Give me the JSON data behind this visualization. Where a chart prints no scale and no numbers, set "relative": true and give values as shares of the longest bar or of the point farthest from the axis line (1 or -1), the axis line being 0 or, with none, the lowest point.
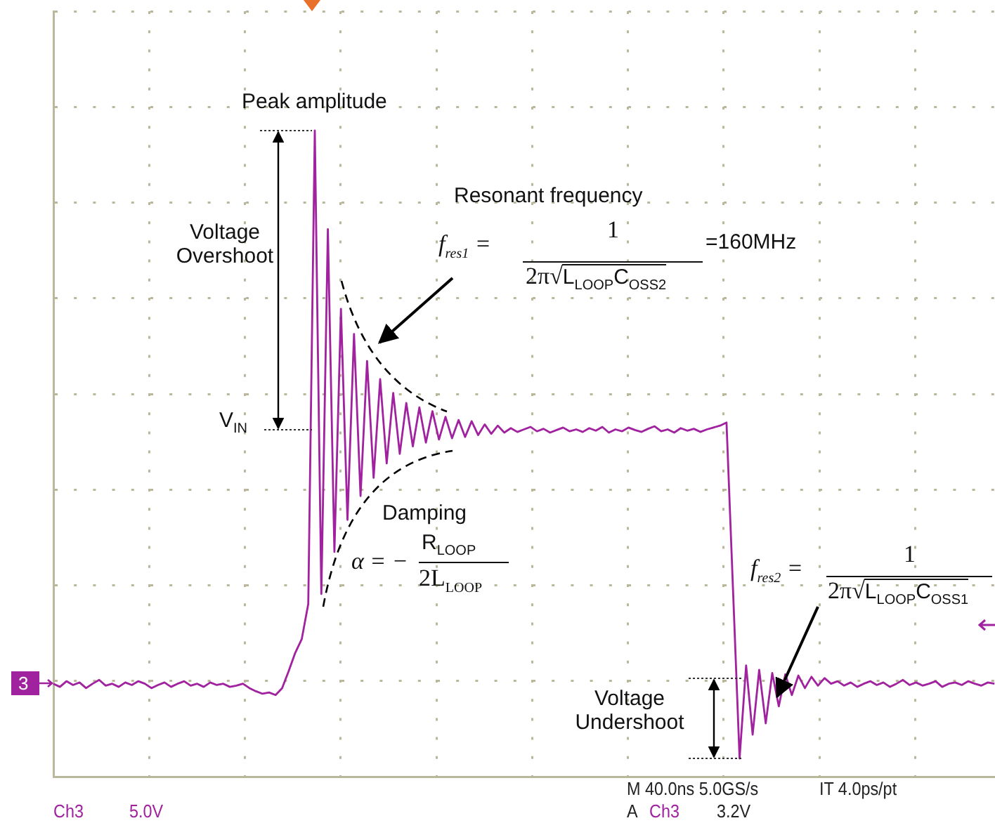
{
  "chart_data": {
    "type": "line",
    "relative": true,
    "grid": true,
    "legend": false,
    "tick_labels": false,
    "marker": "none",
    "line_style": "solid",
    "categories": [
      null,
      null,
      null,
      null,
      null,
      null,
      null,
      null,
      null,
      null,
      null,
      null,
      null,
      null,
      null,
      null,
      null,
      null,
      null,
      null,
      null,
      null,
      null,
      null,
      null,
      null,
      null,
      null,
      null,
      null,
      null,
      null,
      null,
      null,
      null,
      null,
      null,
      null,
      null,
      null,
      null,
      null,
      null,
      null,
      null,
      null,
      null,
      null,
      null,
      null,
      null,
      null,
      null,
      null,
      null,
      null,
      null,
      null,
      null,
      null,
      null,
      null,
      null,
      null,
      null,
      null,
      null,
      null,
      null,
      null,
      null,
      null,
      null,
      null,
      null,
      null,
      null,
      null,
      null,
      null,
      null,
      null,
      null,
      null,
      null,
      null,
      null,
      null,
      null,
      null,
      null,
      null,
      null,
      null,
      null,
      null,
      null,
      null,
      null,
      null,
      null,
      null,
      null,
      null,
      null,
      null,
      null,
      null,
      null,
      null,
      null,
      null,
      null,
      null,
      null,
      null,
      null,
      null,
      null,
      null,
      null,
      null,
      null,
      null,
      null,
      null,
      null,
      null,
      null,
      null,
      null,
      null,
      null,
      null,
      null,
      null,
      null,
      null,
      null,
      null,
      null,
      null,
      null,
      null,
      null
    ],
    "series": [
      {
        "color": "#a0229f",
        "values": [
          0.119,
          0.114,
          0.123,
          0.117,
          0.121,
          0.112,
          0.119,
          0.125,
          0.116,
          0.119,
          0.114,
          0.121,
          0.117,
          0.123,
          0.119,
          0.112,
          0.117,
          0.121,
          0.114,
          0.119,
          0.123,
          0.116,
          0.119,
          0.114,
          0.121,
          0.117,
          0.119,
          0.114,
          0.116,
          0.119,
          0.112,
          0.107,
          0.103,
          0.105,
          0.101,
          0.112,
          0.139,
          0.168,
          0.19,
          0.246,
          1.0,
          0.262,
          0.843,
          0.329,
          0.716,
          0.38,
          0.676,
          0.418,
          0.633,
          0.447,
          0.604,
          0.47,
          0.582,
          0.485,
          0.566,
          0.497,
          0.559,
          0.503,
          0.553,
          0.508,
          0.544,
          0.51,
          0.539,
          0.512,
          0.537,
          0.515,
          0.532,
          0.517,
          0.53,
          0.519,
          0.526,
          0.52,
          0.524,
          0.528,
          0.521,
          0.525,
          0.519,
          0.523,
          0.527,
          0.521,
          0.524,
          0.52,
          0.526,
          0.522,
          0.528,
          0.519,
          0.524,
          0.521,
          0.527,
          0.523,
          0.52,
          0.525,
          0.529,
          0.521,
          0.524,
          0.519,
          0.526,
          0.522,
          0.525,
          0.52,
          0.524,
          0.527,
          0.53,
          0.535,
          0.268,
          0.0,
          0.148,
          0.038,
          0.141,
          0.056,
          0.136,
          0.083,
          0.134,
          0.101,
          0.132,
          0.112,
          0.13,
          0.116,
          0.128,
          0.119,
          0.123,
          0.116,
          0.121,
          0.114,
          0.119,
          0.123,
          0.117,
          0.121,
          0.114,
          0.119,
          0.125,
          0.117,
          0.121,
          0.116,
          0.119,
          0.123,
          0.114,
          0.119,
          0.121,
          0.117,
          0.123,
          0.119,
          0.116,
          0.121,
          0.119
        ]
      }
    ],
    "annotations": [
      "Peak amplitude",
      "Voltage Overshoot",
      "V$_{IN}$",
      "Resonant frequency",
      "f$_{res1}$ =",
      "1",
      "2π√L$_{LOOP}$C$_{OSS2}$",
      "=160MHz",
      "Damping",
      "α = −",
      "R$_{LOOP}$",
      "2L$_{LOOP}$",
      "f$_{res2}$ =",
      "1",
      "2π√L$_{LOOP}$C$_{OSS1}$",
      "Voltage Undershoot",
      "3",
      "Ch3",
      "5.0V",
      "M 40.0ns 5.0GS/s",
      "IT 4.0ps/pt",
      "A",
      "Ch3",
      "3.2V"
    ]
  }
}
